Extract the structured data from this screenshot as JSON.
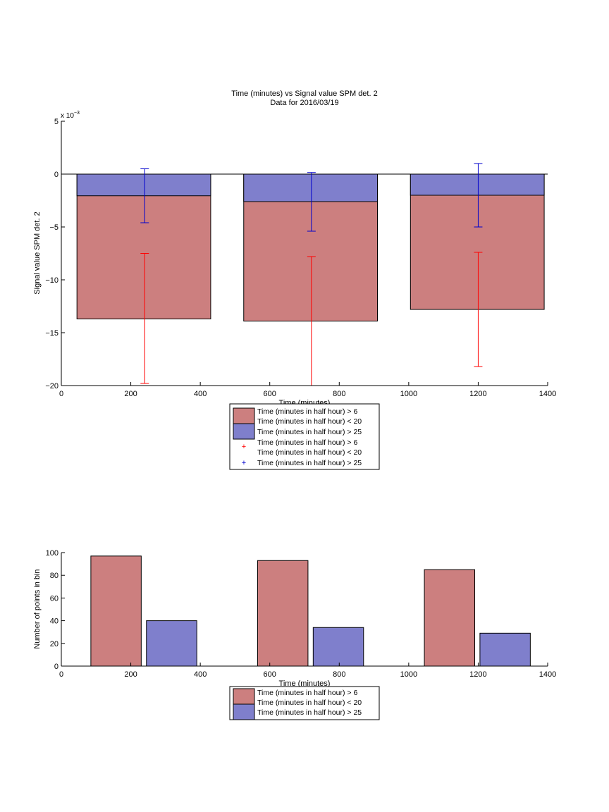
{
  "chart_data": [
    {
      "type": "bar",
      "title": "Time (minutes) vs Signal value SPM det. 2",
      "subtitle": "Data for 2016/03/19",
      "xlabel": "Time (minutes)",
      "ylabel": "Signal value SPM det. 2",
      "xlim": [
        0,
        1400
      ],
      "ylim": [
        -20,
        5
      ],
      "y_multiplier_label": "x 10",
      "y_multiplier_exponent": "−3",
      "x_ticks": [
        "0",
        "200",
        "400",
        "600",
        "800",
        "1000",
        "1200",
        "1400"
      ],
      "y_ticks": [
        "−20",
        "−15",
        "−10",
        "−5",
        "0",
        "5"
      ],
      "grid": false,
      "legend_placement": "below",
      "bar_groups": [
        {
          "x_start": 45,
          "x_end": 430
        },
        {
          "x_start": 525,
          "x_end": 910
        },
        {
          "x_start": 1005,
          "x_end": 1390
        }
      ],
      "series": [
        {
          "name": "Time (minutes in half hour) > 6",
          "name2": "Time (minutes in half hour) < 20",
          "color": "#cc7f7f",
          "values": [
            -13.7,
            -13.9,
            -12.8
          ]
        },
        {
          "name": "Time (minutes in half hour) > 25",
          "color": "#7f7fcc",
          "values": [
            -2.05,
            -2.6,
            -2.0
          ]
        }
      ],
      "error_bars": [
        {
          "name": "Time (minutes in half hour) > 6",
          "name2": "Time (minutes in half hour) < 20",
          "color": "#ff0000",
          "x": [
            240,
            720,
            1200
          ],
          "lower": [
            -19.8,
            -20.0,
            -18.2
          ],
          "upper": [
            -7.5,
            -7.8,
            -7.4
          ]
        },
        {
          "name": "Time (minutes in half hour) > 25",
          "color": "#0000cc",
          "x": [
            240,
            720,
            1200
          ],
          "lower": [
            -4.6,
            -5.4,
            -5.0
          ],
          "upper": [
            0.5,
            0.15,
            1.0
          ]
        }
      ]
    },
    {
      "type": "bar",
      "xlabel": "Time (minutes)",
      "ylabel": "Number of points in bin",
      "xlim": [
        0,
        1400
      ],
      "ylim": [
        0,
        100
      ],
      "x_ticks": [
        "0",
        "200",
        "400",
        "600",
        "800",
        "1000",
        "1200",
        "1400"
      ],
      "y_ticks": [
        "0",
        "20",
        "40",
        "60",
        "80",
        "100"
      ],
      "grid": false,
      "legend_placement": "below",
      "series": [
        {
          "name": "Time (minutes in half hour) > 6",
          "name2": "Time (minutes in half hour) < 20",
          "color": "#cc7f7f",
          "x_start": [
            85,
            565,
            1045
          ],
          "x_end": [
            230,
            710,
            1190
          ],
          "values": [
            97,
            93,
            85
          ]
        },
        {
          "name": "Time (minutes in half hour) > 25",
          "color": "#7f7fcc",
          "x_start": [
            245,
            725,
            1205
          ],
          "x_end": [
            390,
            870,
            1350
          ],
          "values": [
            40,
            34,
            29
          ]
        }
      ]
    }
  ]
}
